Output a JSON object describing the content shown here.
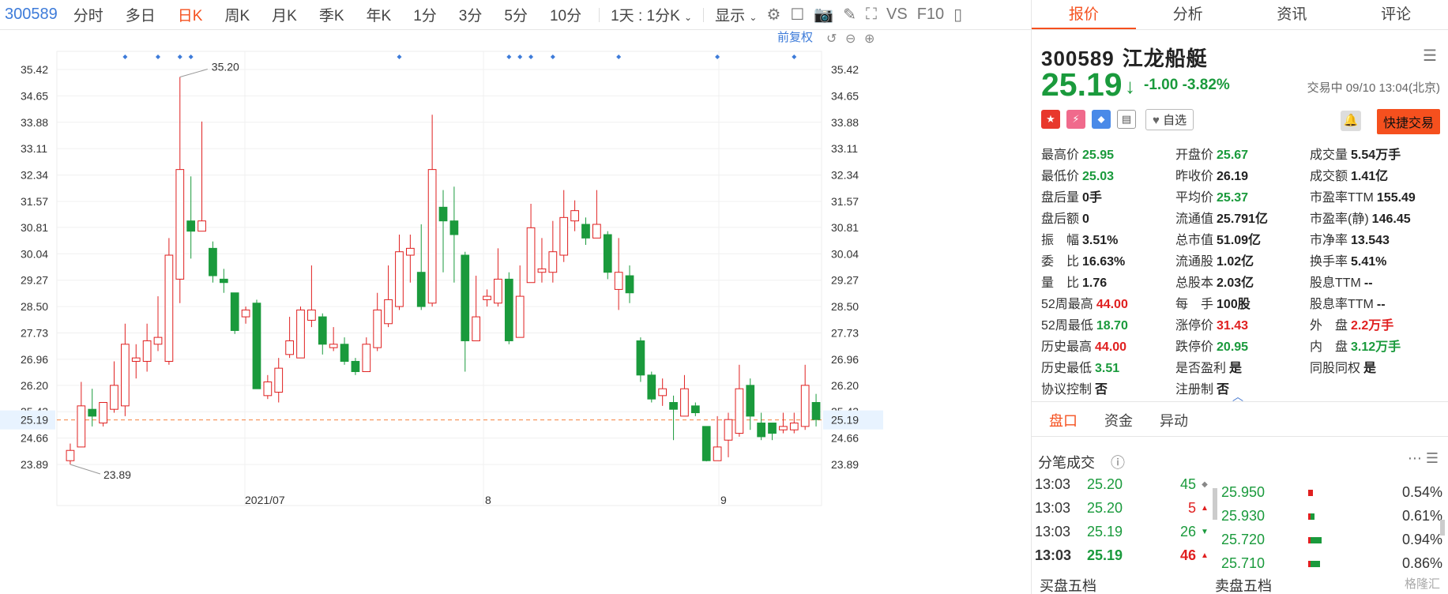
{
  "toolbar": {
    "code": "300589",
    "periods": [
      "分时",
      "多日",
      "日K",
      "周K",
      "月K",
      "季K",
      "年K",
      "1分",
      "3分",
      "5分",
      "10分"
    ],
    "active_period": "日K",
    "interval": "1天 : 1分K",
    "display": "显示",
    "vs_label": "VS",
    "f10_label": "F10",
    "fq_label": "前复权"
  },
  "right_tabs": [
    "报价",
    "分析",
    "资讯",
    "评论"
  ],
  "stock": {
    "code": "300589",
    "name": "江龙船艇",
    "price": "25.19",
    "change": "-1.00",
    "change_pct": "-3.82%",
    "state": "交易中 09/10 13:04(北京)",
    "watch_label": "自选",
    "quick_trade": "快捷交易"
  },
  "quote_rows": [
    [
      {
        "k": "最高价",
        "v": "25.95",
        "c": "g"
      },
      {
        "k": "开盘价",
        "v": "25.67",
        "c": "g"
      },
      {
        "k": "成交量",
        "v": "5.54万手",
        "c": ""
      }
    ],
    [
      {
        "k": "最低价",
        "v": "25.03",
        "c": "g"
      },
      {
        "k": "昨收价",
        "v": "26.19",
        "c": ""
      },
      {
        "k": "成交额",
        "v": "1.41亿",
        "c": ""
      }
    ],
    [
      {
        "k": "盘后量",
        "v": "0手",
        "c": ""
      },
      {
        "k": "平均价",
        "v": "25.37",
        "c": "g"
      },
      {
        "k": "市盈率TTM",
        "v": "155.49",
        "c": ""
      }
    ],
    [
      {
        "k": "盘后额",
        "v": "0",
        "c": ""
      },
      {
        "k": "流通值",
        "v": "25.791亿",
        "c": ""
      },
      {
        "k": "市盈率(静)",
        "v": "146.45",
        "c": ""
      }
    ],
    [
      {
        "k": "振　幅",
        "v": "3.51%",
        "c": ""
      },
      {
        "k": "总市值",
        "v": "51.09亿",
        "c": ""
      },
      {
        "k": "市净率",
        "v": "13.543",
        "c": ""
      }
    ],
    [
      {
        "k": "委　比",
        "v": "16.63%",
        "c": ""
      },
      {
        "k": "流通股",
        "v": "1.02亿",
        "c": ""
      },
      {
        "k": "换手率",
        "v": "5.41%",
        "c": ""
      }
    ],
    [
      {
        "k": "量　比",
        "v": "1.76",
        "c": ""
      },
      {
        "k": "总股本",
        "v": "2.03亿",
        "c": ""
      },
      {
        "k": "股息TTM",
        "v": "--",
        "c": ""
      }
    ],
    [
      {
        "k": "52周最高",
        "v": "44.00",
        "c": "r"
      },
      {
        "k": "每　手",
        "v": "100股",
        "c": ""
      },
      {
        "k": "股息率TTM",
        "v": "--",
        "c": ""
      }
    ],
    [
      {
        "k": "52周最低",
        "v": "18.70",
        "c": "g"
      },
      {
        "k": "涨停价",
        "v": "31.43",
        "c": "r"
      },
      {
        "k": "外　盘",
        "v": "2.2万手",
        "c": "r"
      }
    ],
    [
      {
        "k": "历史最高",
        "v": "44.00",
        "c": "r"
      },
      {
        "k": "跌停价",
        "v": "20.95",
        "c": "g"
      },
      {
        "k": "内　盘",
        "v": "3.12万手",
        "c": "g"
      }
    ],
    [
      {
        "k": "历史最低",
        "v": "3.51",
        "c": "g"
      },
      {
        "k": "是否盈利",
        "v": "是",
        "c": ""
      },
      {
        "k": "同股同权",
        "v": "是",
        "c": ""
      }
    ],
    [
      {
        "k": "协议控制",
        "v": "否",
        "c": ""
      },
      {
        "k": "注册制",
        "v": "否",
        "c": ""
      },
      {
        "k": "",
        "v": "",
        "c": ""
      }
    ]
  ],
  "panel_tabs": [
    "盘口",
    "资金",
    "异动"
  ],
  "fenbi_title": "分笔成交",
  "trades": [
    {
      "t": "13:03",
      "p": "25.20",
      "n": "45",
      "dir": "flat"
    },
    {
      "t": "13:03",
      "p": "25.20",
      "n": "5",
      "dir": "up"
    },
    {
      "t": "13:03",
      "p": "25.19",
      "n": "26",
      "dir": "down"
    },
    {
      "t": "13:03",
      "p": "25.19",
      "n": "46",
      "dir": "up"
    }
  ],
  "levels": [
    {
      "p": "25.950",
      "pct": "0.54%",
      "red": 0.06,
      "green": 0.0
    },
    {
      "p": "25.930",
      "pct": "0.61%",
      "red": 0.03,
      "green": 0.05
    },
    {
      "p": "25.720",
      "pct": "0.94%",
      "red": 0.03,
      "green": 0.14
    },
    {
      "p": "25.710",
      "pct": "0.86%",
      "red": 0.03,
      "green": 0.12
    }
  ],
  "bottom": {
    "buy": "买盘五档",
    "sell": "卖盘五档"
  },
  "watermark": "格隆汇",
  "colors": {
    "up": "#e02020",
    "down": "#1a9a3c",
    "accent": "#f5501e",
    "link": "#3d7bd9"
  },
  "chart_data": {
    "type": "candlestick",
    "y_ticks": [
      "35.42",
      "34.65",
      "33.88",
      "33.11",
      "32.34",
      "31.57",
      "30.81",
      "30.04",
      "29.27",
      "28.50",
      "27.73",
      "26.96",
      "26.20",
      "25.43",
      "24.66",
      "23.89"
    ],
    "ylim": [
      23.89,
      35.42
    ],
    "x_labels": [
      "2021/07",
      "8",
      "9"
    ],
    "current_price": "25.19",
    "max_label": "35.20",
    "min_label": "23.89",
    "candles": [
      {
        "o": 24.0,
        "c": 24.3,
        "h": 24.5,
        "l": 23.89
      },
      {
        "o": 24.4,
        "c": 25.6,
        "h": 26.3,
        "l": 24.4
      },
      {
        "o": 25.5,
        "c": 25.3,
        "h": 26.1,
        "l": 25.0
      },
      {
        "o": 25.1,
        "c": 25.7,
        "h": 25.7,
        "l": 25.0
      },
      {
        "o": 25.5,
        "c": 26.2,
        "h": 26.9,
        "l": 25.4
      },
      {
        "o": 25.6,
        "c": 27.4,
        "h": 28.0,
        "l": 25.3
      },
      {
        "o": 26.9,
        "c": 27.0,
        "h": 27.4,
        "l": 26.4
      },
      {
        "o": 26.9,
        "c": 27.5,
        "h": 28.0,
        "l": 26.6
      },
      {
        "o": 27.4,
        "c": 27.6,
        "h": 28.8,
        "l": 27.2
      },
      {
        "o": 26.9,
        "c": 30.0,
        "h": 30.5,
        "l": 26.8
      },
      {
        "o": 29.3,
        "c": 32.5,
        "h": 35.2,
        "l": 28.6
      },
      {
        "o": 31.0,
        "c": 30.7,
        "h": 32.3,
        "l": 29.9
      },
      {
        "o": 30.7,
        "c": 31.0,
        "h": 33.9,
        "l": 30.7
      },
      {
        "o": 30.2,
        "c": 29.4,
        "h": 30.4,
        "l": 29.2
      },
      {
        "o": 29.3,
        "c": 29.2,
        "h": 29.6,
        "l": 28.9
      },
      {
        "o": 28.9,
        "c": 27.8,
        "h": 28.9,
        "l": 27.7
      },
      {
        "o": 28.2,
        "c": 28.4,
        "h": 28.5,
        "l": 28.0
      },
      {
        "o": 28.6,
        "c": 26.1,
        "h": 28.7,
        "l": 26.1
      },
      {
        "o": 25.9,
        "c": 26.3,
        "h": 26.5,
        "l": 25.8
      },
      {
        "o": 26.0,
        "c": 26.7,
        "h": 27.0,
        "l": 25.7
      },
      {
        "o": 27.1,
        "c": 27.5,
        "h": 28.2,
        "l": 27.0
      },
      {
        "o": 27.0,
        "c": 28.4,
        "h": 28.5,
        "l": 27.0
      },
      {
        "o": 28.1,
        "c": 28.4,
        "h": 29.7,
        "l": 27.9
      },
      {
        "o": 28.2,
        "c": 27.4,
        "h": 28.3,
        "l": 27.1
      },
      {
        "o": 27.3,
        "c": 27.4,
        "h": 27.9,
        "l": 27.2
      },
      {
        "o": 27.4,
        "c": 26.9,
        "h": 27.6,
        "l": 26.8
      },
      {
        "o": 26.9,
        "c": 26.6,
        "h": 27.0,
        "l": 26.5
      },
      {
        "o": 26.6,
        "c": 27.4,
        "h": 27.6,
        "l": 26.6
      },
      {
        "o": 27.3,
        "c": 28.4,
        "h": 28.9,
        "l": 27.2
      },
      {
        "o": 28.0,
        "c": 28.7,
        "h": 29.7,
        "l": 27.9
      },
      {
        "o": 28.5,
        "c": 30.1,
        "h": 30.6,
        "l": 28.4
      },
      {
        "o": 30.0,
        "c": 30.2,
        "h": 30.6,
        "l": 29.2
      },
      {
        "o": 29.5,
        "c": 28.5,
        "h": 30.9,
        "l": 28.4
      },
      {
        "o": 28.6,
        "c": 32.5,
        "h": 34.1,
        "l": 28.5
      },
      {
        "o": 31.4,
        "c": 31.0,
        "h": 31.9,
        "l": 29.5
      },
      {
        "o": 31.0,
        "c": 30.6,
        "h": 32.0,
        "l": 29.2
      },
      {
        "o": 30.0,
        "c": 27.5,
        "h": 30.1,
        "l": 26.6
      },
      {
        "o": 27.5,
        "c": 28.2,
        "h": 29.4,
        "l": 27.5
      },
      {
        "o": 28.7,
        "c": 28.8,
        "h": 29.0,
        "l": 28.5
      },
      {
        "o": 28.6,
        "c": 29.3,
        "h": 30.2,
        "l": 28.5
      },
      {
        "o": 29.3,
        "c": 27.5,
        "h": 29.5,
        "l": 27.4
      },
      {
        "o": 27.6,
        "c": 28.8,
        "h": 29.7,
        "l": 27.6
      },
      {
        "o": 29.2,
        "c": 30.8,
        "h": 31.5,
        "l": 29.2
      },
      {
        "o": 29.5,
        "c": 29.6,
        "h": 30.5,
        "l": 29.2
      },
      {
        "o": 29.5,
        "c": 30.1,
        "h": 31.0,
        "l": 29.2
      },
      {
        "o": 30.0,
        "c": 31.1,
        "h": 31.9,
        "l": 29.8
      },
      {
        "o": 31.0,
        "c": 31.3,
        "h": 31.6,
        "l": 30.7
      },
      {
        "o": 30.9,
        "c": 30.5,
        "h": 31.1,
        "l": 30.3
      },
      {
        "o": 30.5,
        "c": 30.9,
        "h": 31.9,
        "l": 30.5
      },
      {
        "o": 30.6,
        "c": 29.5,
        "h": 30.7,
        "l": 29.3
      },
      {
        "o": 29.0,
        "c": 29.5,
        "h": 30.5,
        "l": 28.4
      },
      {
        "o": 29.4,
        "c": 28.9,
        "h": 29.7,
        "l": 28.6
      },
      {
        "o": 27.5,
        "c": 26.5,
        "h": 27.6,
        "l": 26.3
      },
      {
        "o": 26.5,
        "c": 25.8,
        "h": 26.6,
        "l": 25.7
      },
      {
        "o": 25.9,
        "c": 26.1,
        "h": 26.4,
        "l": 25.6
      },
      {
        "o": 25.7,
        "c": 25.5,
        "h": 25.9,
        "l": 24.6
      },
      {
        "o": 25.3,
        "c": 26.1,
        "h": 26.5,
        "l": 25.3
      },
      {
        "o": 25.6,
        "c": 25.4,
        "h": 25.7,
        "l": 25.3
      },
      {
        "o": 25.0,
        "c": 24.0,
        "h": 25.0,
        "l": 23.98
      },
      {
        "o": 24.0,
        "c": 24.4,
        "h": 25.3,
        "l": 24.0
      },
      {
        "o": 24.6,
        "c": 25.2,
        "h": 25.4,
        "l": 24.1
      },
      {
        "o": 24.8,
        "c": 26.1,
        "h": 26.8,
        "l": 24.7
      },
      {
        "o": 26.2,
        "c": 25.3,
        "h": 26.4,
        "l": 24.9
      },
      {
        "o": 25.1,
        "c": 24.7,
        "h": 25.4,
        "l": 24.6
      },
      {
        "o": 25.1,
        "c": 24.8,
        "h": 25.1,
        "l": 24.6
      },
      {
        "o": 24.9,
        "c": 25.0,
        "h": 25.4,
        "l": 24.8
      },
      {
        "o": 24.9,
        "c": 25.1,
        "h": 25.4,
        "l": 24.8
      },
      {
        "o": 25.0,
        "c": 26.2,
        "h": 26.8,
        "l": 24.9
      },
      {
        "o": 25.7,
        "c": 25.2,
        "h": 25.95,
        "l": 25.0
      }
    ],
    "markers": [
      5,
      8,
      10,
      11,
      30,
      40,
      41,
      42,
      44,
      50,
      59,
      66
    ]
  }
}
